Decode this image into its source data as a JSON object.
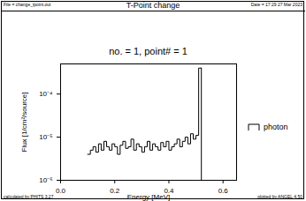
{
  "chart_data": {
    "type": "histogram",
    "title": "T-Point change",
    "header_left": "File = change_tpoint.out",
    "header_right": "Date = 17:29 27 Mar 2023",
    "subtitle": "no. = 1, point# = 1",
    "footer_left": "calculated by PHITS 3.27",
    "footer_right": "plotted by ANGEL 4.50",
    "x_label": "Energy [MeV]",
    "y_label": "Flux [1/cm²/source]",
    "bins": [
      0.1,
      0.11,
      0.12,
      0.13,
      0.14,
      0.15,
      0.16,
      0.17,
      0.18,
      0.19,
      0.2,
      0.21,
      0.22,
      0.23,
      0.24,
      0.25,
      0.26,
      0.27,
      0.28,
      0.29,
      0.3,
      0.31,
      0.32,
      0.33,
      0.34,
      0.35,
      0.36,
      0.37,
      0.38,
      0.39,
      0.4,
      0.41,
      0.42,
      0.43,
      0.44,
      0.45,
      0.46,
      0.47,
      0.48,
      0.49,
      0.5,
      0.51,
      0.52
    ],
    "series": [
      {
        "name": "photon",
        "color": "#000000",
        "values": [
          4e-06,
          5e-06,
          6e-06,
          4.5e-06,
          7e-06,
          5e-06,
          8e-06,
          6e-06,
          5e-06,
          7e-06,
          6e-06,
          4e-06,
          6.5e-06,
          8e-06,
          5.5e-06,
          6e-06,
          9e-06,
          5e-06,
          7e-06,
          6e-06,
          4.5e-06,
          6e-06,
          8e-06,
          5e-06,
          7e-06,
          6e-06,
          5e-06,
          7.5e-06,
          6e-06,
          8e-06,
          5e-06,
          6e-06,
          7e-06,
          9e-06,
          6e-06,
          8e-06,
          1e-05,
          7e-06,
          1.2e-05,
          9e-06,
          1.1e-05,
          0.0004
        ]
      }
    ],
    "xlim": [
      0,
      0.65
    ],
    "xticks": [
      {
        "value": 0,
        "label": "0.0"
      },
      {
        "value": 0.2,
        "label": "0.2"
      },
      {
        "value": 0.4,
        "label": "0.4"
      },
      {
        "value": 0.6,
        "label": "0.6"
      }
    ],
    "ylim": [
      1e-06,
      0.0005
    ],
    "yticks": [
      {
        "value": 1e-06,
        "label": "10⁻⁶"
      },
      {
        "value": 1e-05,
        "label": "10⁻⁵"
      },
      {
        "value": 0.0001,
        "label": "10⁻⁴"
      }
    ],
    "log": "y",
    "legend": "right"
  }
}
